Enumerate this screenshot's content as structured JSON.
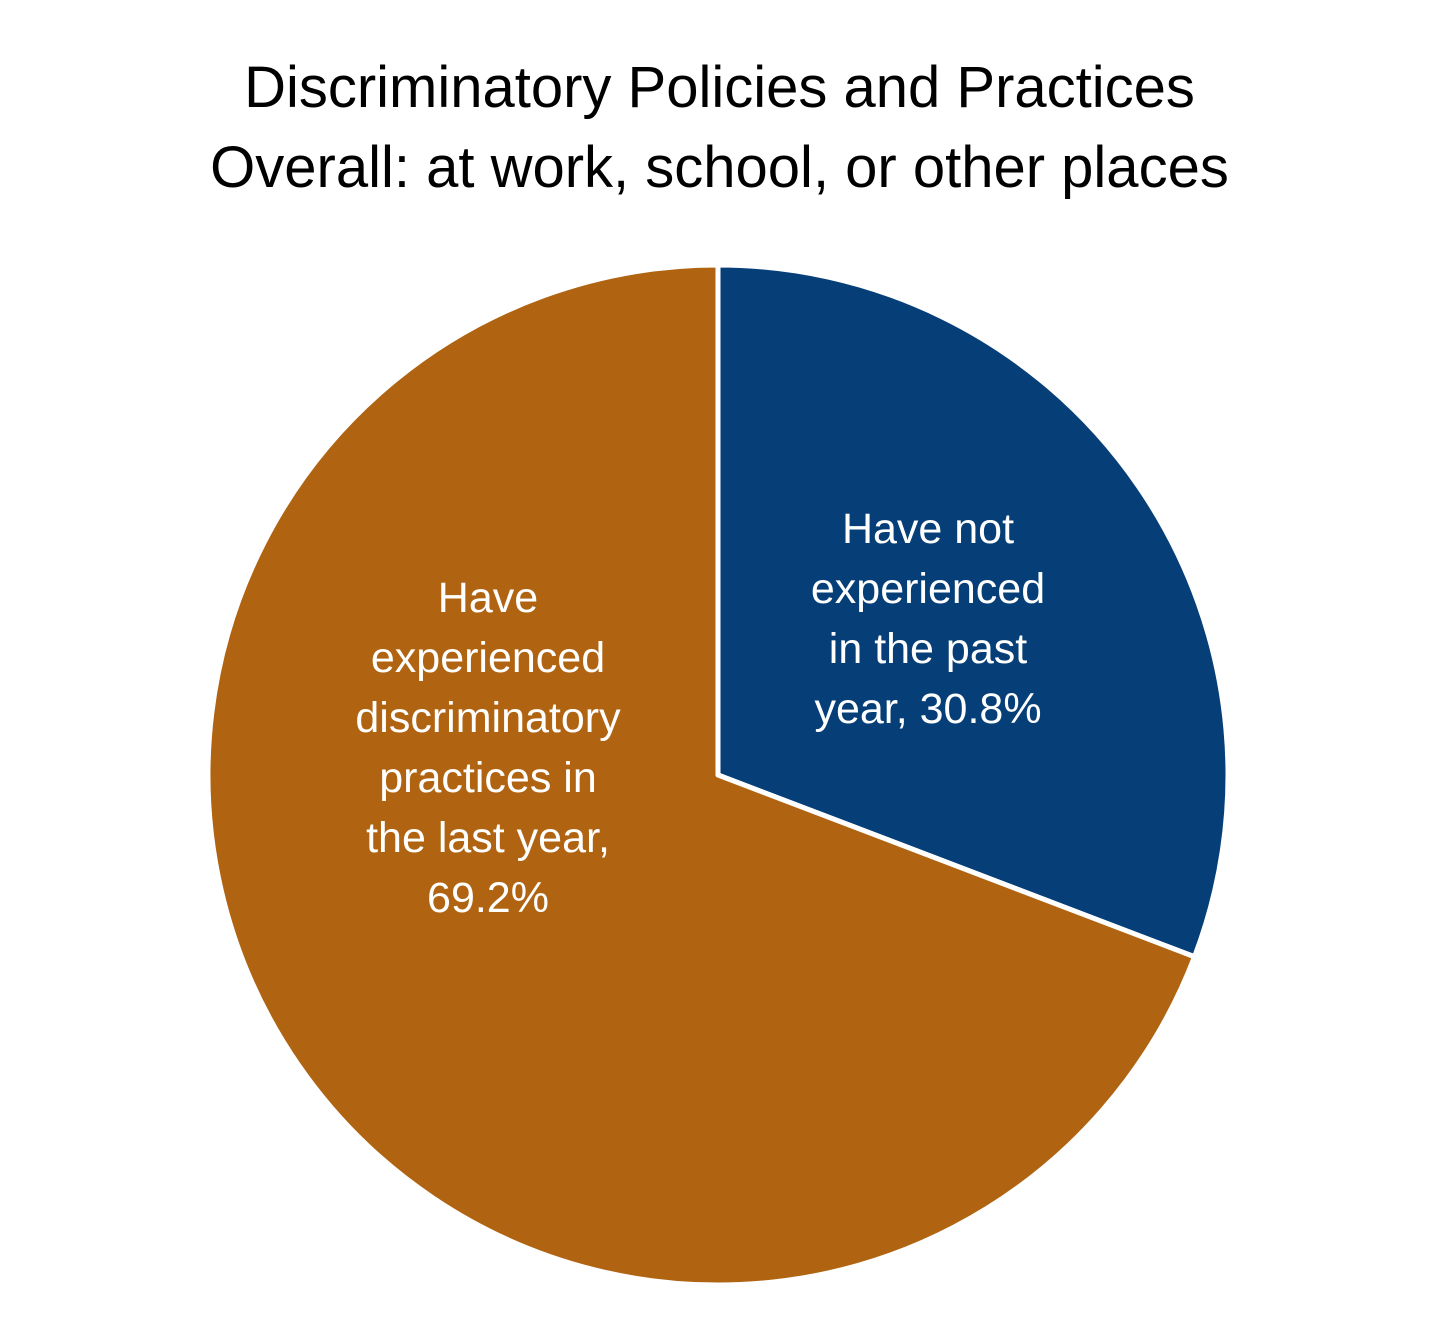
{
  "chart_data": {
    "type": "pie",
    "title_lines": [
      "Discriminatory Policies and Practices",
      "Overall: at work, school, or other places"
    ],
    "slices": [
      {
        "label_lines": [
          "Have not",
          "experienced",
          "in the past",
          "year, 30.8%"
        ],
        "value": 30.8,
        "color": "#063f77"
      },
      {
        "label_lines": [
          "Have",
          "experienced",
          "discriminatory",
          "practices in",
          "the last year,",
          "69.2%"
        ],
        "value": 69.2,
        "color": "#b06412"
      }
    ],
    "legend": "none"
  }
}
